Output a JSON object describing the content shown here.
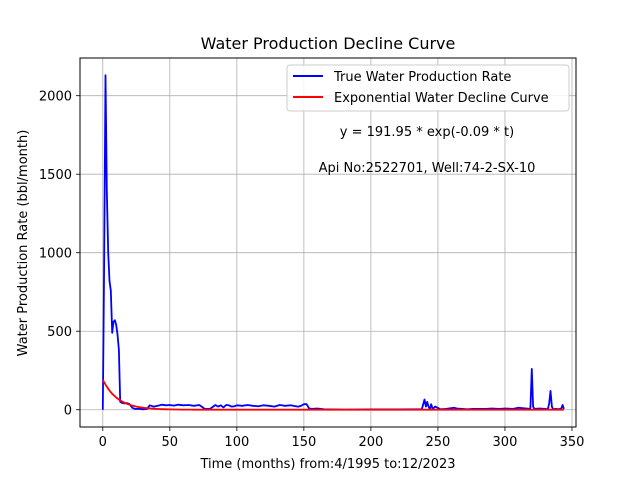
{
  "chart_data": {
    "type": "line",
    "title": "Water Production Decline Curve",
    "xlabel": "Time (months) from:4/1995 to:12/2023",
    "ylabel": "Water Production Rate (bbl/month)",
    "xlim": [
      -17,
      353
    ],
    "ylim": [
      -110,
      2240
    ],
    "xticks": [
      0,
      50,
      100,
      150,
      200,
      250,
      300,
      350
    ],
    "yticks": [
      0,
      500,
      1000,
      1500,
      2000
    ],
    "grid": true,
    "legend_position": "top-right",
    "annotations": [
      "y = 191.95 * exp(-0.09 * t)",
      "Api No:2522701, Well:74-2-SX-10"
    ],
    "series": [
      {
        "name": "True Water Production Rate",
        "color": "#0000ff",
        "x": [
          0,
          1,
          2,
          3,
          4,
          5,
          6,
          7,
          8,
          9,
          10,
          11,
          12,
          13,
          14,
          16,
          18,
          20,
          22,
          24,
          27,
          30,
          33,
          35,
          38,
          41,
          44,
          47,
          50,
          53,
          56,
          60,
          64,
          68,
          72,
          74,
          76,
          80,
          84,
          86,
          88,
          90,
          92,
          94,
          96,
          98,
          100,
          104,
          108,
          112,
          116,
          120,
          124,
          128,
          132,
          136,
          140,
          144,
          146,
          148,
          150,
          152,
          154,
          156,
          160,
          165,
          170,
          180,
          200,
          220,
          236,
          238,
          240,
          241,
          242,
          243,
          244,
          245,
          246,
          248,
          252,
          256,
          260,
          262,
          264,
          268,
          272,
          276,
          280,
          286,
          290,
          296,
          300,
          306,
          310,
          316,
          318,
          319,
          320,
          321,
          322,
          326,
          330,
          332,
          333,
          334,
          335,
          336,
          338,
          340,
          342,
          343,
          344
        ],
        "values": [
          0,
          900,
          2130,
          1400,
          1000,
          820,
          760,
          490,
          560,
          570,
          540,
          480,
          380,
          50,
          45,
          40,
          42,
          35,
          12,
          5,
          5,
          3,
          5,
          28,
          20,
          25,
          32,
          28,
          30,
          26,
          32,
          28,
          30,
          25,
          30,
          18,
          5,
          5,
          30,
          20,
          28,
          15,
          30,
          28,
          20,
          22,
          28,
          25,
          30,
          25,
          22,
          28,
          25,
          20,
          30,
          25,
          28,
          22,
          20,
          25,
          36,
          35,
          8,
          5,
          8,
          3,
          2,
          1,
          2,
          2,
          3,
          2,
          65,
          20,
          50,
          20,
          5,
          35,
          5,
          20,
          3,
          5,
          10,
          12,
          8,
          5,
          3,
          5,
          5,
          5,
          8,
          5,
          8,
          5,
          12,
          8,
          5,
          10,
          260,
          20,
          5,
          8,
          5,
          3,
          40,
          120,
          20,
          3,
          5,
          3,
          8,
          30,
          5
        ]
      },
      {
        "name": "Exponential Water Decline Curve",
        "color": "#ff0000",
        "equation": {
          "a": 191.95,
          "b": 0.09
        },
        "x_range": [
          0,
          344
        ]
      }
    ]
  }
}
